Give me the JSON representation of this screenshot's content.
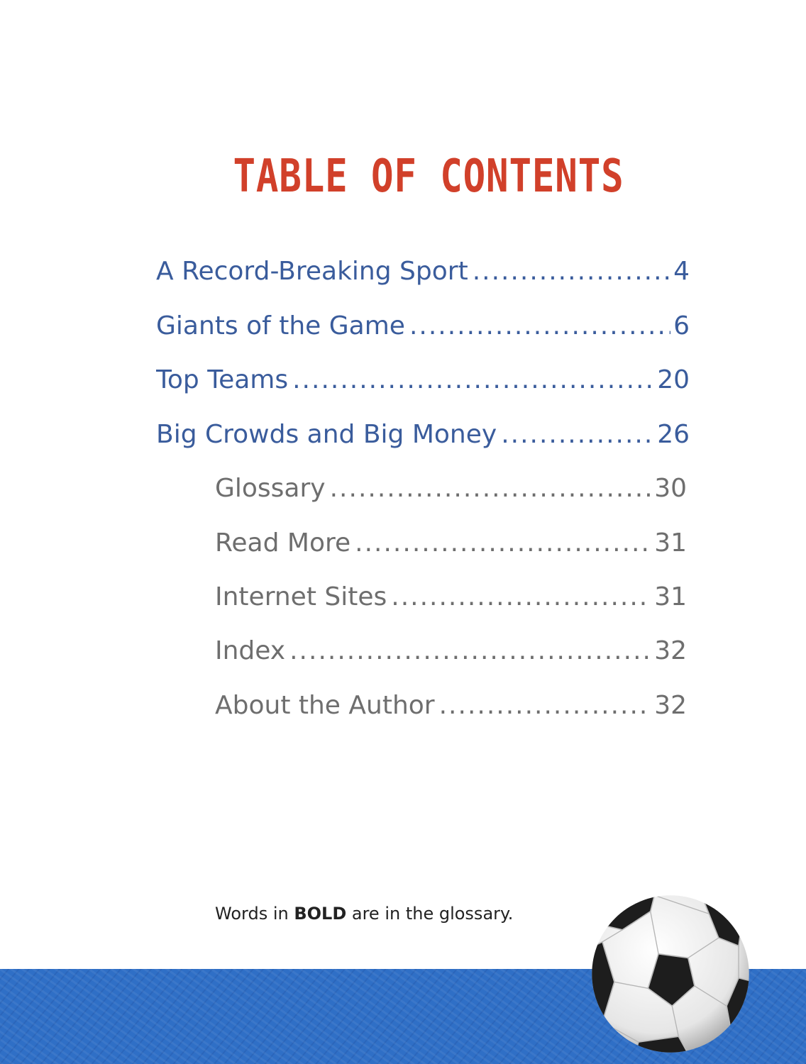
{
  "title": "TABLE OF CONTENTS",
  "chapters": [
    {
      "label": "A Record-Breaking Sport",
      "page": "4"
    },
    {
      "label": "Giants of the Game",
      "page": "6"
    },
    {
      "label": "Top Teams",
      "page": "20"
    },
    {
      "label": "Big Crowds and Big Money",
      "page": "26"
    }
  ],
  "back_matter": [
    {
      "label": "Glossary",
      "page": "30"
    },
    {
      "label": "Read More",
      "page": "31"
    },
    {
      "label": "Internet Sites",
      "page": "31"
    },
    {
      "label": "Index",
      "page": "32"
    },
    {
      "label": "About the Author",
      "page": "32"
    }
  ],
  "note": {
    "prefix": "Words in ",
    "bold": "BOLD",
    "suffix": " are in the glossary."
  },
  "colors": {
    "title": "#d1402a",
    "chapters": "#3a5c9c",
    "back_matter": "#6e6e6e",
    "band": "#2f6fc6"
  },
  "decor": {
    "ball_icon": "soccer-ball-icon"
  }
}
